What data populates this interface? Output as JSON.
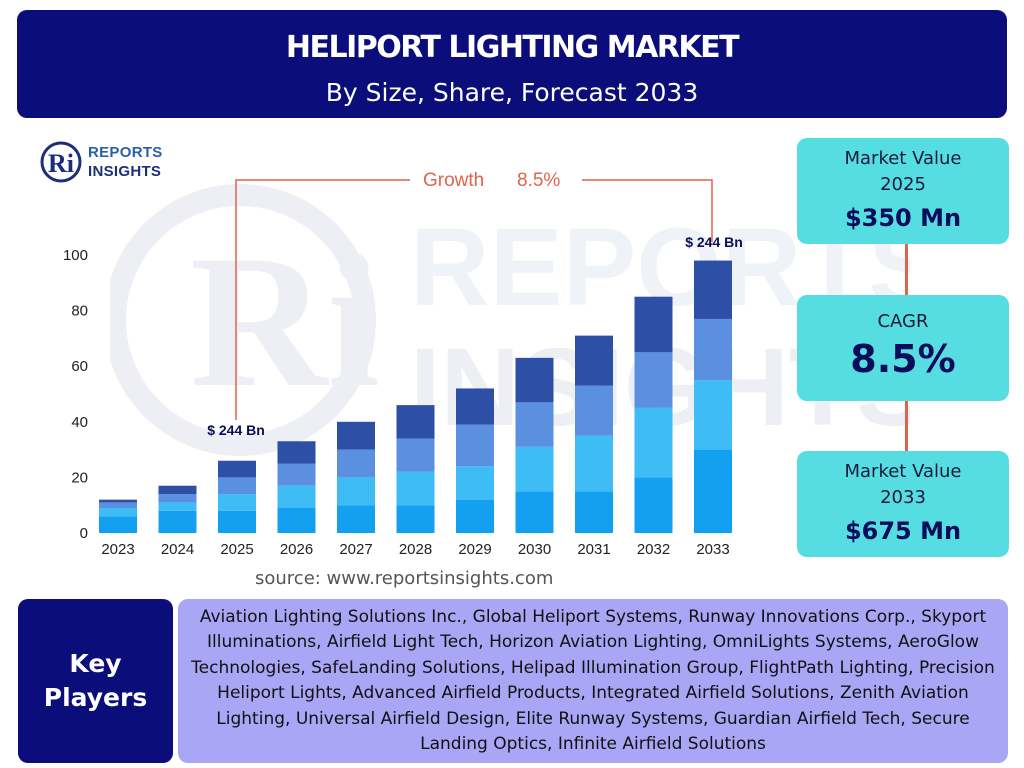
{
  "header": {
    "title": "HELIPORT LIGHTING MARKET",
    "subtitle": "By Size, Share, Forecast 2033"
  },
  "logo": {
    "line1": "REPORTS",
    "line2": "INSIGHTS",
    "mark": "Ri"
  },
  "colors": {
    "navy": "#0b0d7a",
    "cyan": "#55dde2",
    "lavender": "#a9a6f5",
    "accent": "#e0634a",
    "seg1": "#14a0f0",
    "seg2": "#3dbcf5",
    "seg3": "#5b8fe0",
    "seg4": "#2e4fa6"
  },
  "chart_data": {
    "type": "bar",
    "stacked": true,
    "categories": [
      "2023",
      "2024",
      "2025",
      "2026",
      "2027",
      "2028",
      "2029",
      "2030",
      "2031",
      "2032",
      "2033"
    ],
    "series": [
      {
        "values": [
          6,
          8,
          8,
          9,
          10,
          10,
          12,
          15,
          15,
          20,
          30
        ]
      },
      {
        "values": [
          3,
          3,
          6,
          8,
          10,
          12,
          12,
          16,
          20,
          25,
          25
        ]
      },
      {
        "values": [
          2,
          3,
          6,
          8,
          10,
          12,
          15,
          16,
          18,
          20,
          22
        ]
      },
      {
        "values": [
          1,
          3,
          6,
          8,
          10,
          12,
          13,
          16,
          18,
          20,
          21
        ]
      }
    ],
    "yticks": [
      0,
      20,
      40,
      60,
      80,
      100
    ],
    "ylim": [
      0,
      100
    ],
    "annotations": {
      "growth_label": "Growth",
      "growth_value": "8.5%",
      "start_label": "$ 244 Bn",
      "end_label": "$ 244 Bn"
    }
  },
  "source": "source: www.reportsinsights.com",
  "kpis": {
    "market_value_2025": {
      "label_line1": "Market Value",
      "label_line2": "2025",
      "value": "$350 Mn"
    },
    "cagr": {
      "label": "CAGR",
      "value": "8.5%"
    },
    "market_value_2033": {
      "label_line1": "Market Value",
      "label_line2": "2033",
      "value": "$675 Mn"
    }
  },
  "key_players": {
    "title_line1": "Key",
    "title_line2": "Players",
    "text": "Aviation Lighting Solutions Inc., Global Heliport Systems, Runway Innovations Corp., Skyport Illuminations, Airfield Light Tech, Horizon Aviation Lighting, OmniLights Systems, AeroGlow Technologies, SafeLanding Solutions, Helipad Illumination Group, FlightPath Lighting, Precision Heliport Lights, Advanced Airfield Products, Integrated Airfield Solutions, Zenith Aviation Lighting, Universal Airfield Design, Elite Runway Systems, Guardian Airfield Tech, Secure Landing Optics, Infinite Airfield Solutions"
  }
}
